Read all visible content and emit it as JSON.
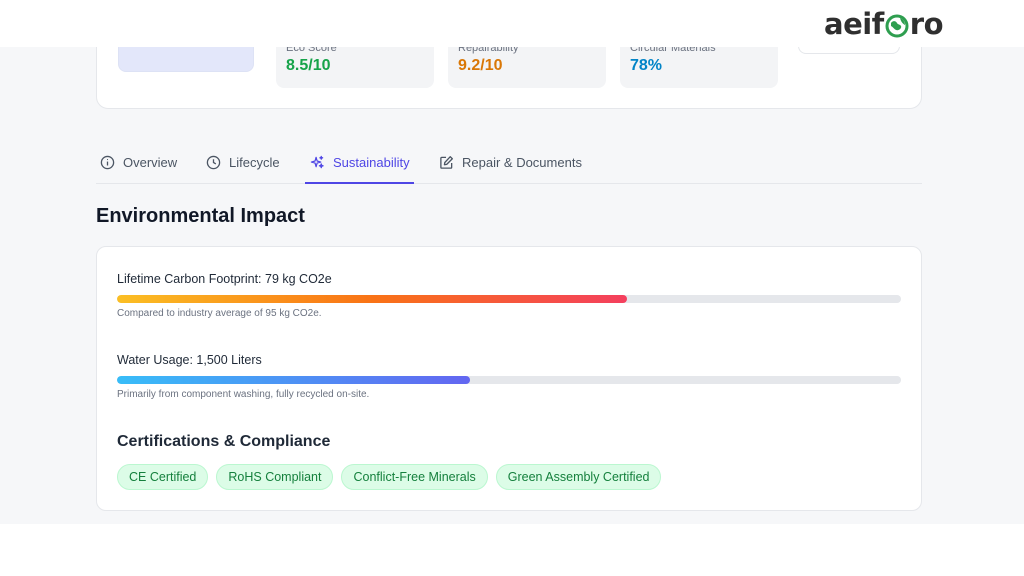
{
  "brand": {
    "logo_text_start": "aeif",
    "logo_text_end": "ro",
    "globe_color": "#2e9e4f"
  },
  "top_stats": [
    {
      "label": "Eco Score",
      "value": "8.5/10",
      "color": "#16a34a"
    },
    {
      "label": "Repairability",
      "value": "9.2/10",
      "color": "#d97706"
    },
    {
      "label": "Circular Materials",
      "value": "78%",
      "color": "#0284c7"
    }
  ],
  "tabs": [
    {
      "label": "Overview",
      "icon": "info-icon",
      "active": false
    },
    {
      "label": "Lifecycle",
      "icon": "clock-icon",
      "active": false
    },
    {
      "label": "Sustainability",
      "icon": "sparkles-icon",
      "active": true
    },
    {
      "label": "Repair & Documents",
      "icon": "edit-icon",
      "active": false
    }
  ],
  "section_title": "Environmental Impact",
  "metrics": {
    "carbon": {
      "label": "Lifetime Carbon Footprint: 79 kg CO2e",
      "progress": 0.65,
      "note": "Compared to industry average of 95 kg CO2e."
    },
    "water": {
      "label": "Water Usage: 1,500 Liters",
      "progress": 0.45,
      "note": "Primarily from component washing, fully recycled on-site."
    }
  },
  "certifications": {
    "title": "Certifications & Compliance",
    "badges": [
      "CE Certified",
      "RoHS Compliant",
      "Conflict-Free Minerals",
      "Green Assembly Certified"
    ]
  },
  "colors": {
    "accent": "#4f46e5",
    "badge_bg": "#dcfce7",
    "badge_text": "#15803d"
  }
}
